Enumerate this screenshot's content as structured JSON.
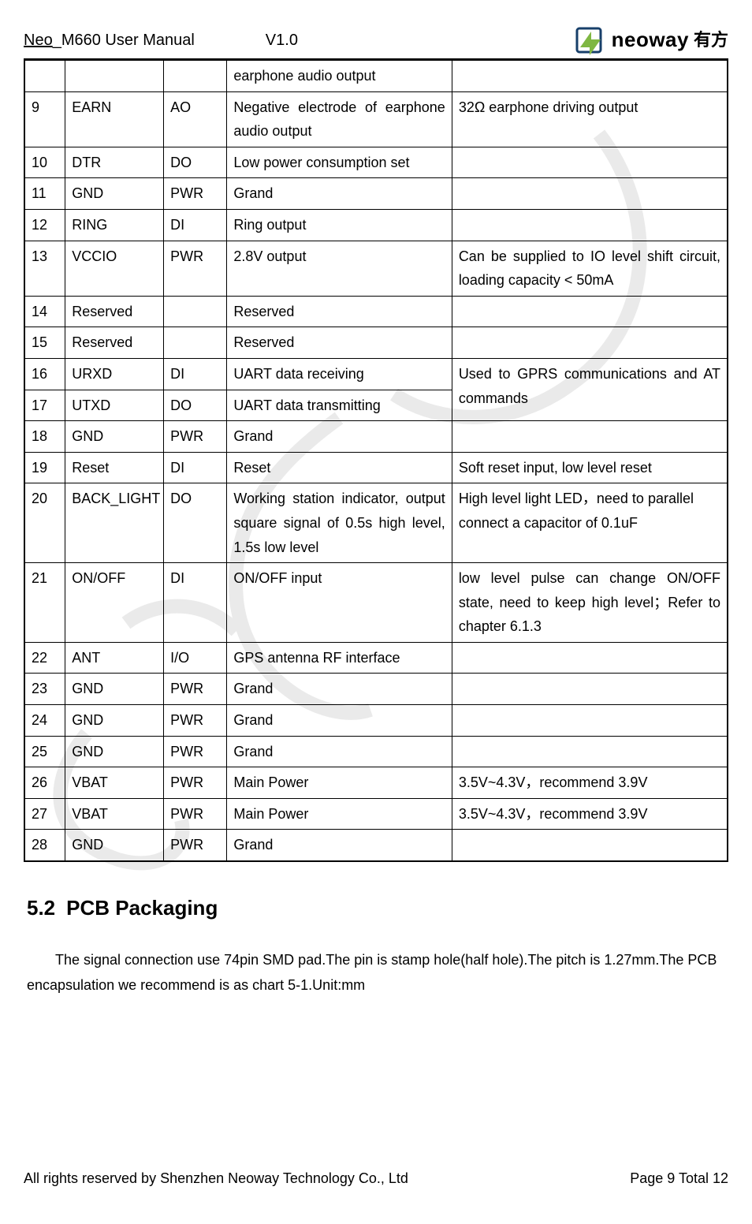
{
  "header": {
    "title_prefix": "Neo",
    "title_rest": "_M660 User Manual",
    "version": "V1.0",
    "logo_text": "neoway",
    "logo_cjk": "有方",
    "logo_colors": {
      "arrow": "#7fb742",
      "square": "#173f6a"
    }
  },
  "table": {
    "rows": [
      {
        "num": "",
        "name": "",
        "io": "",
        "desc": "earphone audio output",
        "note": ""
      },
      {
        "num": "9",
        "name": "EARN",
        "io": "AO",
        "desc": "Negative electrode of earphone audio output",
        "desc_justify": true,
        "note": "32Ω earphone driving output"
      },
      {
        "num": "10",
        "name": "DTR",
        "io": "DO",
        "desc": "Low power consumption set",
        "note": ""
      },
      {
        "num": "11",
        "name": "GND",
        "io": "PWR",
        "desc": "Grand",
        "note": ""
      },
      {
        "num": "12",
        "name": "RING",
        "io": "DI",
        "desc": "Ring output",
        "note": ""
      },
      {
        "num": "13",
        "name": "VCCIO",
        "io": "PWR",
        "desc": "2.8V output",
        "note": "Can be supplied to IO level shift circuit, loading capacity < 50mA",
        "note_justify": true
      },
      {
        "num": "14",
        "name": "Reserved",
        "io": "",
        "desc": "Reserved",
        "note": ""
      },
      {
        "num": "15",
        "name": "Reserved",
        "io": "",
        "desc": "Reserved",
        "note": ""
      },
      {
        "num": "16",
        "name": "URXD",
        "io": "DI",
        "desc": "UART data receiving",
        "note_merge_start": true,
        "note_merge_rows": 2,
        "note": "Used to GPRS communications and AT commands",
        "note_justify": true
      },
      {
        "num": "17",
        "name": "UTXD",
        "io": "DO",
        "desc": "UART data transmitting",
        "note_merged": true
      },
      {
        "num": "18",
        "name": "GND",
        "io": "PWR",
        "desc": "Grand",
        "note": ""
      },
      {
        "num": "19",
        "name": "Reset",
        "io": "DI",
        "desc": "Reset",
        "note": "Soft reset input, low level reset"
      },
      {
        "num": "20",
        "name": "BACK_LIGHT",
        "io": "DO",
        "desc": "Working station indicator, output square signal of 0.5s high level, 1.5s low level",
        "desc_justify": true,
        "note": "High level light LED，need to parallel connect a capacitor of 0.1uF"
      },
      {
        "num": "21",
        "name": "ON/OFF",
        "io": "DI",
        "desc": "ON/OFF input",
        "note": "low level pulse can change ON/OFF state, need to keep high level；Refer to chapter 6.1.3",
        "note_justify": true
      },
      {
        "num": "22",
        "name": "ANT",
        "io": "I/O",
        "desc": "GPS antenna RF interface",
        "desc_justify": true,
        "note": ""
      },
      {
        "num": "23",
        "name": "GND",
        "io": "PWR",
        "desc": "Grand",
        "note": ""
      },
      {
        "num": "24",
        "name": "GND",
        "io": "PWR",
        "desc": "Grand",
        "note": ""
      },
      {
        "num": "25",
        "name": "GND",
        "io": "PWR",
        "desc": "Grand",
        "note": ""
      },
      {
        "num": "26",
        "name": "VBAT",
        "io": "PWR",
        "desc": "Main Power",
        "note": "3.5V~4.3V，recommend 3.9V"
      },
      {
        "num": "27",
        "name": "VBAT",
        "io": "PWR",
        "desc": "Main Power",
        "note": "3.5V~4.3V，recommend 3.9V"
      },
      {
        "num": "28",
        "name": "GND",
        "io": "PWR",
        "desc": "Grand",
        "note": ""
      }
    ]
  },
  "section": {
    "number": "5.2",
    "title": "PCB Packaging",
    "paragraph": "The signal connection use 74pin SMD pad.The pin is stamp hole(half hole).The pitch is 1.27mm.The PCB encapsulation we recommend is as chart 5-1.Unit:mm"
  },
  "footer": {
    "copyright": "All rights reserved by Shenzhen Neoway Technology Co., Ltd",
    "page": "Page 9 Total 12"
  },
  "colors": {
    "text": "#000000",
    "border": "#000000",
    "background": "#ffffff",
    "watermark": "#e8e8e8"
  }
}
